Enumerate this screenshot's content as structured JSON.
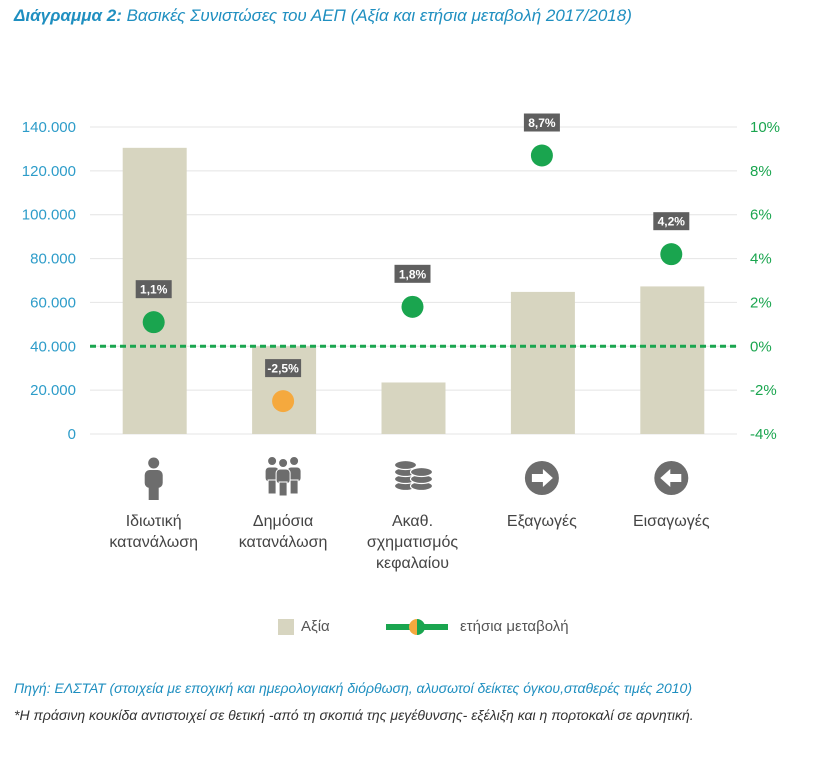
{
  "title": {
    "prefix": "Διάγραμμα 2:",
    "text": "Βασικές Συνιστώσες του ΑΕΠ (Αξία και ετήσια μεταβολή 2017/2018)"
  },
  "colors": {
    "bar": "#d7d5c0",
    "positive": "#1aa54f",
    "negative": "#f5a93e",
    "axis_left": "#2d9cc9",
    "axis_right": "#1aa54f",
    "label_bg": "#5f5f5f",
    "icon": "#6d6d6d",
    "title": "#1f8fc0"
  },
  "chart_data": {
    "type": "bar",
    "title": "Βασικές Συνιστώσες του ΑΕΠ (Αξία και ετήσια μεταβολή 2017/2018)",
    "categories": [
      "Ιδιωτική\nκατανάλωση",
      "Δημόσια\nκατανάλωση",
      "Ακαθ.\nσχηματισμός\nκεφαλαίου",
      "Εξαγωγές",
      "Εισαγωγές"
    ],
    "category_icons": [
      "person-icon",
      "group-icon",
      "coins-icon",
      "arrow-right-icon",
      "arrow-left-icon"
    ],
    "series": [
      {
        "name": "Αξία",
        "axis": "left",
        "values": [
          130500,
          40000,
          23500,
          64800,
          67300
        ]
      },
      {
        "name": "ετήσια μεταβολή",
        "axis": "right",
        "values": [
          1.1,
          -2.5,
          1.8,
          8.7,
          4.2
        ],
        "labels": [
          "1,1%",
          "-2,5%",
          "1,8%",
          "8,7%",
          "4,2%"
        ]
      }
    ],
    "y_left": {
      "min": 0,
      "max": 140000,
      "ticks": [
        "0",
        "20.000",
        "40.000",
        "60.000",
        "80.000",
        "100.000",
        "120.000",
        "140.000"
      ]
    },
    "y_right": {
      "min": -4,
      "max": 10,
      "ticks": [
        "-4%",
        "-2%",
        "0%",
        "2%",
        "4%",
        "6%",
        "8%",
        "10%"
      ]
    },
    "zero_line": "0%",
    "grid": true,
    "legend": [
      "Αξία",
      "ετήσια μεταβολή"
    ],
    "legend_position": "bottom"
  },
  "source": {
    "line1": "Πηγή: ΕΛΣΤΑΤ (στοιχεία με εποχική και ημερολογιακή διόρθωση, αλυσωτοί δείκτες όγκου,σταθερές τιμές 2010)",
    "line2": "*Η πράσινη κουκίδα αντιστοιχεί σε θετική -από τη σκοπιά της μεγέθυνσης- εξέλιξη και η πορτοκαλί σε αρνητική."
  }
}
